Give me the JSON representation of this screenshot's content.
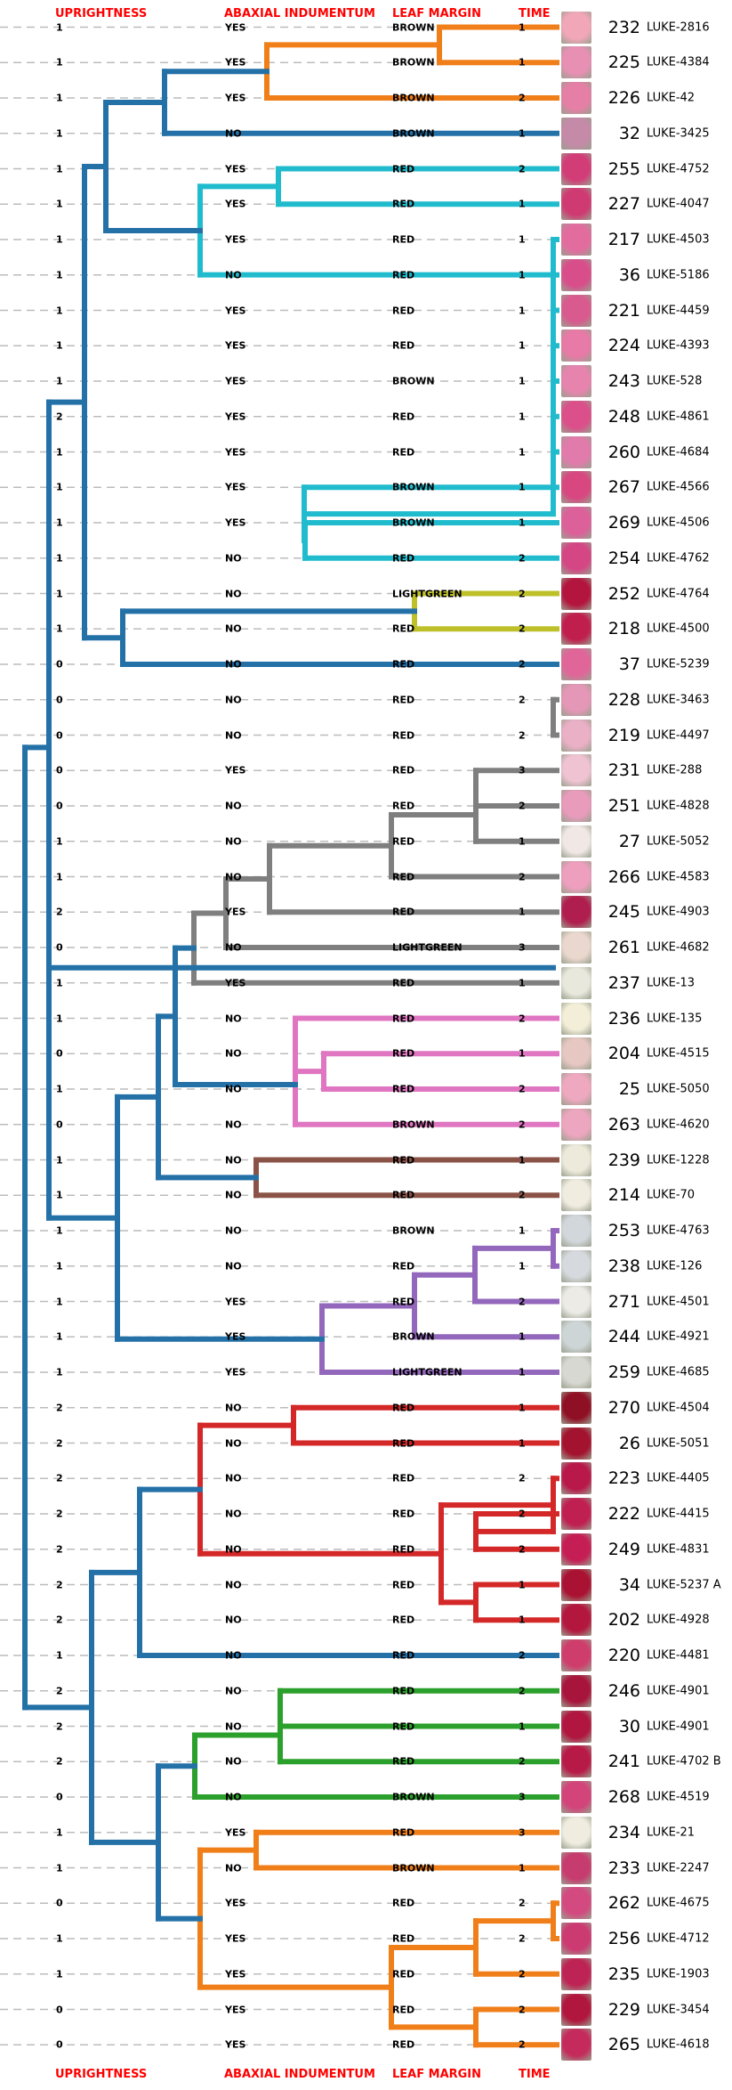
{
  "headers": {
    "uprightness": "UPRIGHTNESS",
    "abaxial": "ABAXIAL INDUMENTUM",
    "leaf_margin": "LEAF MARGIN",
    "time": "TIME"
  },
  "colors": {
    "blue": "#2471a8",
    "orange": "#f07f19",
    "cyan": "#20bcce",
    "olive": "#bec02a",
    "gray": "#7f7f7f",
    "pink": "#e075c1",
    "brown": "#8b5347",
    "purple": "#9367bc",
    "red": "#d42728",
    "green": "#2ca02c",
    "header": "#ff0000"
  },
  "rows": [
    {
      "u": "1",
      "a": "YES",
      "l": "BROWN",
      "t": "1",
      "num": "232",
      "acc": "LUKE-2816",
      "photo": "#f2a7b9"
    },
    {
      "u": "1",
      "a": "YES",
      "l": "BROWN",
      "t": "1",
      "num": "225",
      "acc": "LUKE-4384",
      "photo": "#e890b4"
    },
    {
      "u": "1",
      "a": "YES",
      "l": "BROWN",
      "t": "2",
      "num": "226",
      "acc": "LUKE-42",
      "photo": "#e57fa6"
    },
    {
      "u": "1",
      "a": "NO",
      "l": "BROWN",
      "t": "1",
      "num": "32",
      "acc": "LUKE-3425",
      "photo": "#c58aa8"
    },
    {
      "u": "1",
      "a": "YES",
      "l": "RED",
      "t": "2",
      "num": "255",
      "acc": "LUKE-4752",
      "photo": "#d23d78"
    },
    {
      "u": "1",
      "a": "YES",
      "l": "RED",
      "t": "1",
      "num": "227",
      "acc": "LUKE-4047",
      "photo": "#cf3a72"
    },
    {
      "u": "1",
      "a": "YES",
      "l": "RED",
      "t": "1",
      "num": "217",
      "acc": "LUKE-4503",
      "photo": "#e36c9f"
    },
    {
      "u": "1",
      "a": "NO",
      "l": "RED",
      "t": "1",
      "num": "36",
      "acc": "LUKE-5186",
      "photo": "#d84e8b"
    },
    {
      "u": "1",
      "a": "YES",
      "l": "RED",
      "t": "1",
      "num": "221",
      "acc": "LUKE-4459",
      "photo": "#d85a8e"
    },
    {
      "u": "1",
      "a": "YES",
      "l": "RED",
      "t": "1",
      "num": "224",
      "acc": "LUKE-4393",
      "photo": "#e77aa6"
    },
    {
      "u": "1",
      "a": "YES",
      "l": "BROWN",
      "t": "1",
      "num": "243",
      "acc": "LUKE-528",
      "photo": "#e784ae"
    },
    {
      "u": "2",
      "a": "YES",
      "l": "RED",
      "t": "1",
      "num": "248",
      "acc": "LUKE-4861",
      "photo": "#db4f8a"
    },
    {
      "u": "1",
      "a": "YES",
      "l": "RED",
      "t": "1",
      "num": "260",
      "acc": "LUKE-4684",
      "photo": "#e17bab"
    },
    {
      "u": "1",
      "a": "YES",
      "l": "BROWN",
      "t": "1",
      "num": "267",
      "acc": "LUKE-4566",
      "photo": "#d84780"
    },
    {
      "u": "1",
      "a": "YES",
      "l": "BROWN",
      "t": "1",
      "num": "269",
      "acc": "LUKE-4506",
      "photo": "#dc609a"
    },
    {
      "u": "1",
      "a": "NO",
      "l": "RED",
      "t": "2",
      "num": "254",
      "acc": "LUKE-4762",
      "photo": "#d44684"
    },
    {
      "u": "1",
      "a": "NO",
      "l": "LIGHTGREEN",
      "t": "2",
      "num": "252",
      "acc": "LUKE-4764",
      "photo": "#b3153e"
    },
    {
      "u": "1",
      "a": "NO",
      "l": "RED",
      "t": "2",
      "num": "218",
      "acc": "LUKE-4500",
      "photo": "#c01f4e"
    },
    {
      "u": "0",
      "a": "NO",
      "l": "RED",
      "t": "2",
      "num": "37",
      "acc": "LUKE-5239",
      "photo": "#e0669a"
    },
    {
      "u": "0",
      "a": "NO",
      "l": "RED",
      "t": "2",
      "num": "228",
      "acc": "LUKE-3463",
      "photo": "#e497b6"
    },
    {
      "u": "0",
      "a": "NO",
      "l": "RED",
      "t": "2",
      "num": "219",
      "acc": "LUKE-4497",
      "photo": "#eab0c6"
    },
    {
      "u": "0",
      "a": "YES",
      "l": "RED",
      "t": "3",
      "num": "231",
      "acc": "LUKE-288",
      "photo": "#f0c3d3"
    },
    {
      "u": "0",
      "a": "NO",
      "l": "RED",
      "t": "2",
      "num": "251",
      "acc": "LUKE-4828",
      "photo": "#e89bbb"
    },
    {
      "u": "1",
      "a": "NO",
      "l": "RED",
      "t": "1",
      "num": "27",
      "acc": "LUKE-5052",
      "photo": "#f1e8e6"
    },
    {
      "u": "1",
      "a": "NO",
      "l": "RED",
      "t": "2",
      "num": "266",
      "acc": "LUKE-4583",
      "photo": "#ee9fbe"
    },
    {
      "u": "2",
      "a": "YES",
      "l": "RED",
      "t": "1",
      "num": "245",
      "acc": "LUKE-4903",
      "photo": "#b01d4f"
    },
    {
      "u": "0",
      "a": "NO",
      "l": "LIGHTGREEN",
      "t": "3",
      "num": "261",
      "acc": "LUKE-4682",
      "photo": "#ead7cd"
    },
    {
      "u": "1",
      "a": "YES",
      "l": "RED",
      "t": "1",
      "num": "237",
      "acc": "LUKE-13",
      "photo": "#e8e8dc"
    },
    {
      "u": "1",
      "a": "NO",
      "l": "RED",
      "t": "2",
      "num": "236",
      "acc": "LUKE-135",
      "photo": "#f3eed8"
    },
    {
      "u": "0",
      "a": "NO",
      "l": "RED",
      "t": "1",
      "num": "204",
      "acc": "LUKE-4515",
      "photo": "#e6c7c2"
    },
    {
      "u": "1",
      "a": "NO",
      "l": "RED",
      "t": "2",
      "num": "25",
      "acc": "LUKE-5050",
      "photo": "#eea8bf"
    },
    {
      "u": "0",
      "a": "NO",
      "l": "BROWN",
      "t": "2",
      "num": "263",
      "acc": "LUKE-4620",
      "photo": "#eda6bf"
    },
    {
      "u": "1",
      "a": "NO",
      "l": "RED",
      "t": "1",
      "num": "239",
      "acc": "LUKE-1228",
      "photo": "#eeeadb"
    },
    {
      "u": "1",
      "a": "NO",
      "l": "RED",
      "t": "2",
      "num": "214",
      "acc": "LUKE-70",
      "photo": "#f1ece0"
    },
    {
      "u": "1",
      "a": "NO",
      "l": "BROWN",
      "t": "1",
      "num": "253",
      "acc": "LUKE-4763",
      "photo": "#d2d7dc"
    },
    {
      "u": "1",
      "a": "NO",
      "l": "RED",
      "t": "1",
      "num": "238",
      "acc": "LUKE-126",
      "photo": "#d6dade"
    },
    {
      "u": "1",
      "a": "YES",
      "l": "RED",
      "t": "2",
      "num": "271",
      "acc": "LUKE-4501",
      "photo": "#ecebe6"
    },
    {
      "u": "1",
      "a": "YES",
      "l": "BROWN",
      "t": "1",
      "num": "244",
      "acc": "LUKE-4921",
      "photo": "#cdd5d6"
    },
    {
      "u": "1",
      "a": "YES",
      "l": "LIGHTGREEN",
      "t": "1",
      "num": "259",
      "acc": "LUKE-4685",
      "photo": "#d8d8d2"
    },
    {
      "u": "2",
      "a": "NO",
      "l": "RED",
      "t": "1",
      "num": "270",
      "acc": "LUKE-4504",
      "photo": "#8f1025"
    },
    {
      "u": "2",
      "a": "NO",
      "l": "RED",
      "t": "1",
      "num": "26",
      "acc": "LUKE-5051",
      "photo": "#a3122e"
    },
    {
      "u": "2",
      "a": "NO",
      "l": "RED",
      "t": "2",
      "num": "223",
      "acc": "LUKE-4405",
      "photo": "#b8184a"
    },
    {
      "u": "2",
      "a": "NO",
      "l": "RED",
      "t": "2",
      "num": "222",
      "acc": "LUKE-4415",
      "photo": "#c01f52"
    },
    {
      "u": "2",
      "a": "NO",
      "l": "RED",
      "t": "2",
      "num": "249",
      "acc": "LUKE-4831",
      "photo": "#c51e55"
    },
    {
      "u": "2",
      "a": "NO",
      "l": "RED",
      "t": "1",
      "num": "34",
      "acc": "LUKE-5237 A",
      "photo": "#a91232"
    },
    {
      "u": "2",
      "a": "NO",
      "l": "RED",
      "t": "1",
      "num": "202",
      "acc": "LUKE-4928",
      "photo": "#b3173e"
    },
    {
      "u": "1",
      "a": "NO",
      "l": "RED",
      "t": "2",
      "num": "220",
      "acc": "LUKE-4481",
      "photo": "#cf3d6d"
    },
    {
      "u": "2",
      "a": "NO",
      "l": "RED",
      "t": "2",
      "num": "246",
      "acc": "LUKE-4901",
      "photo": "#a8153c"
    },
    {
      "u": "2",
      "a": "NO",
      "l": "RED",
      "t": "1",
      "num": "30",
      "acc": "LUKE-4901",
      "photo": "#b01640"
    },
    {
      "u": "2",
      "a": "NO",
      "l": "RED",
      "t": "2",
      "num": "241",
      "acc": "LUKE-4702 B",
      "photo": "#b81a48"
    },
    {
      "u": "0",
      "a": "NO",
      "l": "BROWN",
      "t": "3",
      "num": "268",
      "acc": "LUKE-4519",
      "photo": "#d2447a"
    },
    {
      "u": "1",
      "a": "YES",
      "l": "RED",
      "t": "3",
      "num": "234",
      "acc": "LUKE-21",
      "photo": "#f0ede0"
    },
    {
      "u": "1",
      "a": "NO",
      "l": "BROWN",
      "t": "1",
      "num": "233",
      "acc": "LUKE-2247",
      "photo": "#c63c6e"
    },
    {
      "u": "0",
      "a": "YES",
      "l": "RED",
      "t": "2",
      "num": "262",
      "acc": "LUKE-4675",
      "photo": "#d34a80"
    },
    {
      "u": "1",
      "a": "YES",
      "l": "RED",
      "t": "2",
      "num": "256",
      "acc": "LUKE-4712",
      "photo": "#cc3a72"
    },
    {
      "u": "1",
      "a": "YES",
      "l": "RED",
      "t": "2",
      "num": "235",
      "acc": "LUKE-1903",
      "photo": "#bd2455"
    },
    {
      "u": "0",
      "a": "YES",
      "l": "RED",
      "t": "2",
      "num": "229",
      "acc": "LUKE-3454",
      "photo": "#b0163e"
    },
    {
      "u": "0",
      "a": "YES",
      "l": "RED",
      "t": "2",
      "num": "265",
      "acc": "LUKE-4618",
      "photo": "#c42b5c"
    }
  ]
}
